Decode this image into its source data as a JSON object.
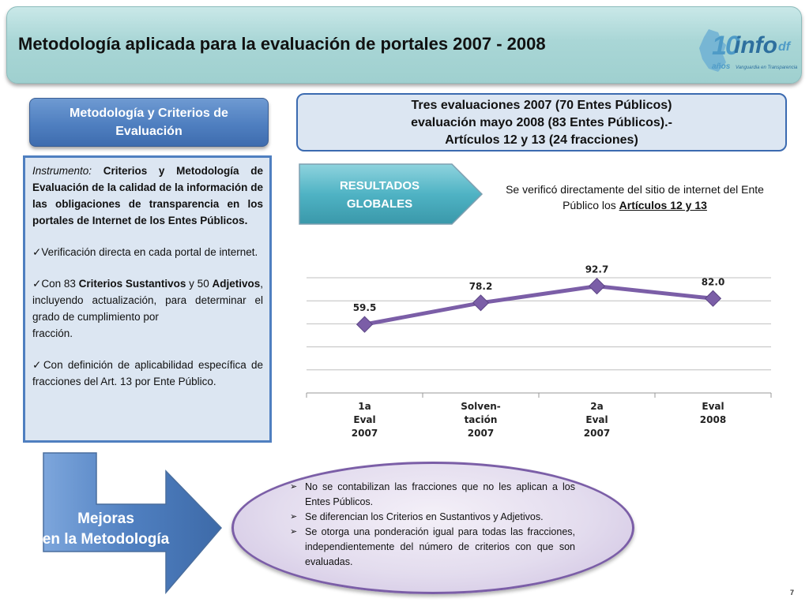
{
  "header": {
    "title": "Metodología aplicada para la evaluación de portales 2007 - 2008",
    "logo": {
      "number": "10",
      "name": "info",
      "suffix": "df",
      "years": "años",
      "tagline": "Vanguardia en Transparencia"
    }
  },
  "method_header": "Metodología y Criterios de Evaluación",
  "evaluations_box": {
    "line1": "Tres evaluaciones 2007 (70 Entes Públicos)",
    "line2": "evaluación mayo 2008 (83 Entes Públicos).-",
    "line3": "Artículos 12 y 13 (24 fracciones)"
  },
  "instrument": {
    "label": "Instrumento:",
    "text": "Criterios y Metodología de Evaluación de la calidad de la información de las obligaciones de transparencia en los portales de Internet de los Entes Públicos.",
    "check1": "Verificación directa en cada portal de internet.",
    "check2_a": "Con 83 ",
    "check2_b": "Criterios Sustantivos",
    "check2_c": " y 50 ",
    "check2_d": "Adjetivos",
    "check2_e": ", incluyendo actualización, para determinar el grado de cumplimiento por",
    "check2_f": "fracción.",
    "check3": "Con definición de aplicabilidad específica de fracciones del Art. 13 por Ente Público.",
    "checkmark": "✓"
  },
  "resultados": {
    "line1": "RESULTADOS",
    "line2": "GLOBALES"
  },
  "verification_note": {
    "text": "Se verificó directamente del sitio de internet del Ente Público los ",
    "bold": "Artículos 12 y 13"
  },
  "chart_data": {
    "type": "line",
    "categories": [
      [
        "1a",
        "Eval",
        "2007"
      ],
      [
        "Solven-",
        "tación",
        "2007"
      ],
      [
        "2a",
        "Eval",
        "2007"
      ],
      [
        "Eval",
        "2008"
      ]
    ],
    "values": [
      59.5,
      78.2,
      92.7,
      82.0
    ],
    "value_labels": [
      "59.5",
      "78.2",
      "92.7",
      "82.0"
    ],
    "ylim": [
      0,
      100
    ],
    "grid": true,
    "color": "#7b5ea7"
  },
  "mejoras": {
    "line1": "Mejoras",
    "line2": "en la Metodología"
  },
  "improvements": [
    "No se contabilizan las fracciones que no les aplican a los Entes Públicos.",
    "Se diferencian los Criterios en Sustantivos y Adjetivos.",
    "Se otorga una ponderación igual para todas las fracciones, independientemente del número de criterios con que son evaluadas."
  ],
  "bullet_marker": "➢",
  "page_number": "7",
  "colors": {
    "title_bar": "#a9d6d6",
    "blue_panel": "#4f7fc0",
    "teal_arrow": "#4fb3c4",
    "purple": "#7b5ea7"
  }
}
